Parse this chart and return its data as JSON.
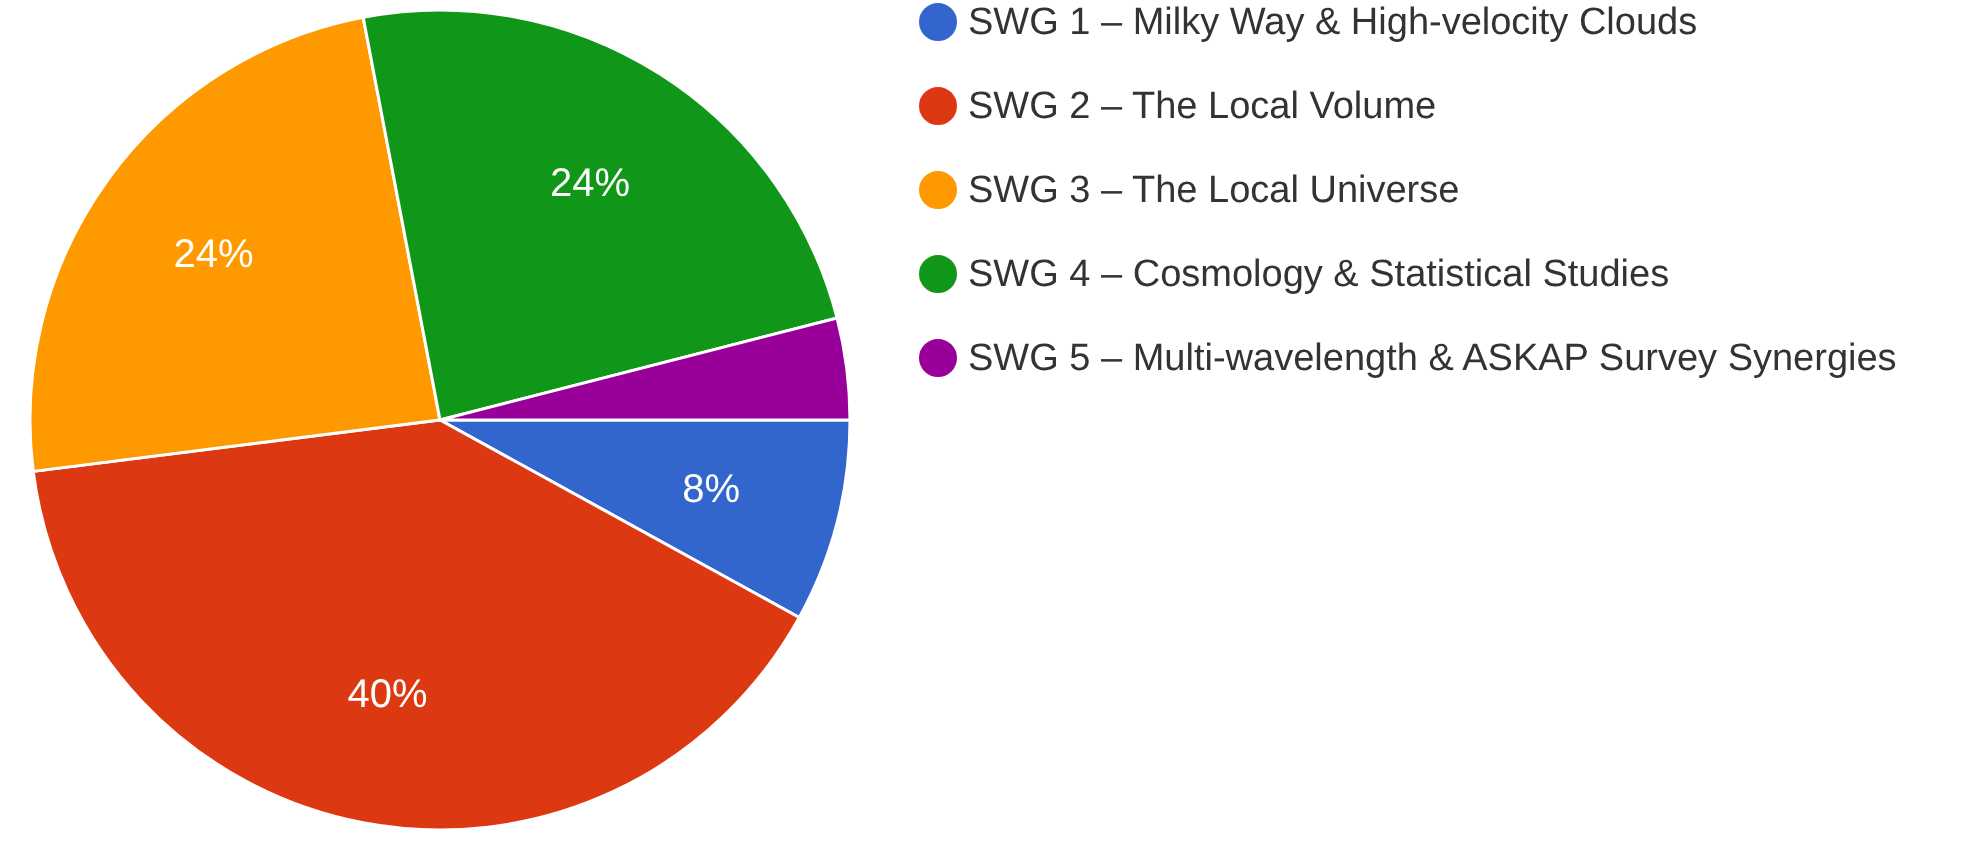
{
  "chart_data": {
    "type": "pie",
    "categories": [
      "SWG 1 – Milky Way & High-velocity Clouds",
      "SWG 2 – The Local Volume",
      "SWG 3 – The Local Universe",
      "SWG 4 – Cosmology & Statistical Studies",
      "SWG 5 – Multi-wavelength & ASKAP Survey Synergies"
    ],
    "values": [
      8,
      40,
      24,
      24,
      4
    ],
    "colors": [
      "#3366cc",
      "#dc3912",
      "#ff9900",
      "#109618",
      "#990099"
    ],
    "value_labels": [
      "8%",
      "40%",
      "24%",
      "24%",
      null
    ],
    "legend": "right"
  }
}
